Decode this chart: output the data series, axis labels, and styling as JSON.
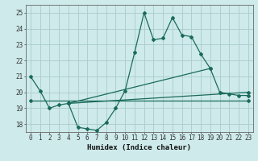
{
  "xlabel": "Humidex (Indice chaleur)",
  "background_color": "#ceeaea",
  "grid_color": "#aacccc",
  "line_color": "#1a6b5a",
  "xlim": [
    -0.5,
    23.5
  ],
  "ylim": [
    17.5,
    25.5
  ],
  "xticks": [
    0,
    1,
    2,
    3,
    4,
    5,
    6,
    7,
    8,
    9,
    10,
    11,
    12,
    13,
    14,
    15,
    16,
    17,
    18,
    19,
    20,
    21,
    22,
    23
  ],
  "yticks": [
    18,
    19,
    20,
    21,
    22,
    23,
    24,
    25
  ],
  "series1": {
    "x": [
      0,
      1,
      2,
      3,
      4,
      5,
      6,
      7,
      8,
      9,
      10,
      11,
      12,
      13,
      14,
      15,
      16,
      17,
      18,
      19,
      20,
      21,
      22,
      23
    ],
    "y": [
      21.0,
      20.1,
      19.0,
      19.2,
      19.3,
      17.8,
      17.7,
      17.6,
      18.1,
      19.0,
      20.1,
      22.5,
      25.0,
      23.3,
      23.4,
      24.7,
      23.6,
      23.5,
      22.4,
      21.5,
      20.0,
      19.9,
      19.8,
      19.8
    ]
  },
  "series2": {
    "x": [
      0,
      23
    ],
    "y": [
      19.5,
      19.5
    ]
  },
  "series3": {
    "x": [
      4,
      23
    ],
    "y": [
      19.3,
      20.0
    ]
  },
  "series4": {
    "x": [
      4,
      19
    ],
    "y": [
      19.3,
      21.5
    ]
  },
  "markersize": 2,
  "linewidth": 0.9,
  "tick_fontsize": 5.5,
  "xlabel_fontsize": 6.5
}
